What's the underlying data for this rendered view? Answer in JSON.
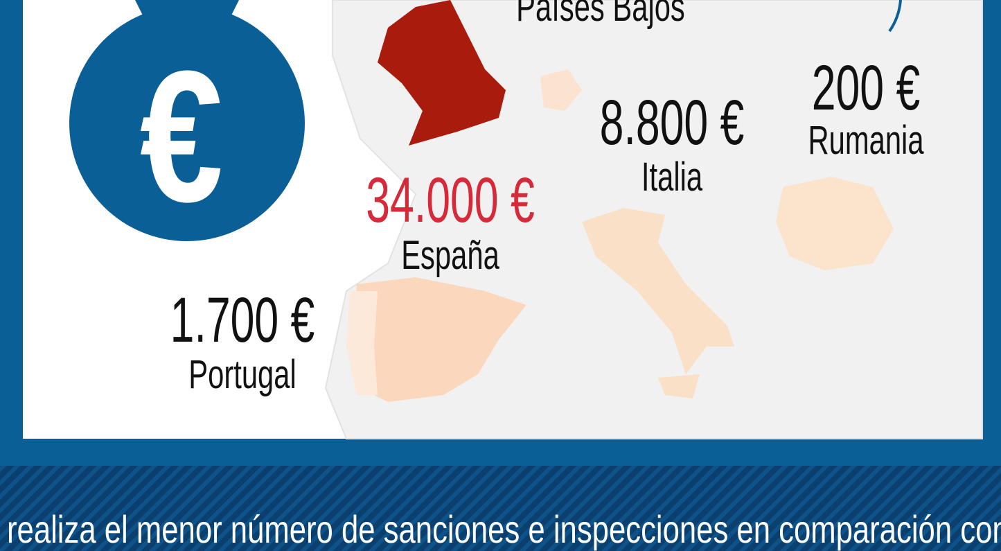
{
  "icon_symbol": "€",
  "labels": [
    {
      "amount": null,
      "country": "Países Bajos",
      "highlight": false
    },
    {
      "amount": "200 €",
      "country": "Rumania",
      "highlight": false
    },
    {
      "amount": "8.800 €",
      "country": "Italia",
      "highlight": false
    },
    {
      "amount": "34.000 €",
      "country": "España",
      "highlight": true
    },
    {
      "amount": "1.700 €",
      "country": "Portugal",
      "highlight": false
    }
  ],
  "footer": {
    "text": "realiza el menor número de sanciones e inspecciones en comparación con"
  }
}
